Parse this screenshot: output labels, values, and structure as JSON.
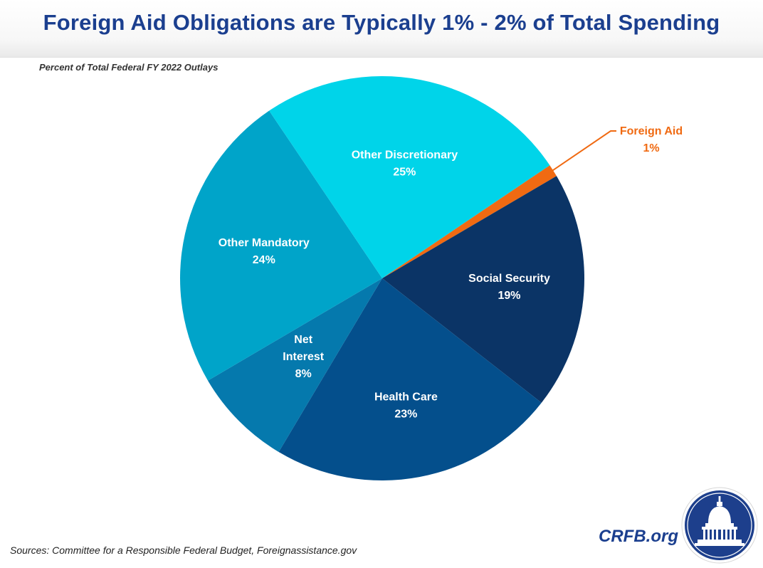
{
  "header": {
    "title": "Foreign Aid Obligations are Typically 1% - 2% of Total Spending",
    "subtitle": "Percent of Total Federal FY 2022 Outlays"
  },
  "chart_data": {
    "type": "pie",
    "title": "Foreign Aid Obligations are Typically 1% - 2% of Total Spending",
    "subtitle": "Percent of Total Federal FY 2022 Outlays",
    "slices": [
      {
        "name": "Foreign Aid",
        "value": 1,
        "label": "1%",
        "color": "#f06a12"
      },
      {
        "name": "Social Security",
        "value": 19,
        "label": "19%",
        "color": "#0b3466"
      },
      {
        "name": "Health Care",
        "value": 23,
        "label": "23%",
        "color": "#044f8c"
      },
      {
        "name": "Net Interest",
        "value": 8,
        "label": "8%",
        "color": "#0579ad"
      },
      {
        "name": "Other Mandatory",
        "value": 24,
        "label": "24%",
        "color": "#00a4c9"
      },
      {
        "name": "Other Discretionary",
        "value": 25,
        "label": "25%",
        "color": "#00d4e9"
      }
    ]
  },
  "footer": {
    "sources": "Sources: Committee for a Responsible Federal Budget, Foreignassistance.gov",
    "brand": "CRFB.org"
  },
  "colors": {
    "title": "#1b3f8f",
    "brand": "#1b3f8f",
    "foreign_aid": "#f06a12"
  },
  "logo": {
    "icon": "capitol-dome-icon"
  }
}
